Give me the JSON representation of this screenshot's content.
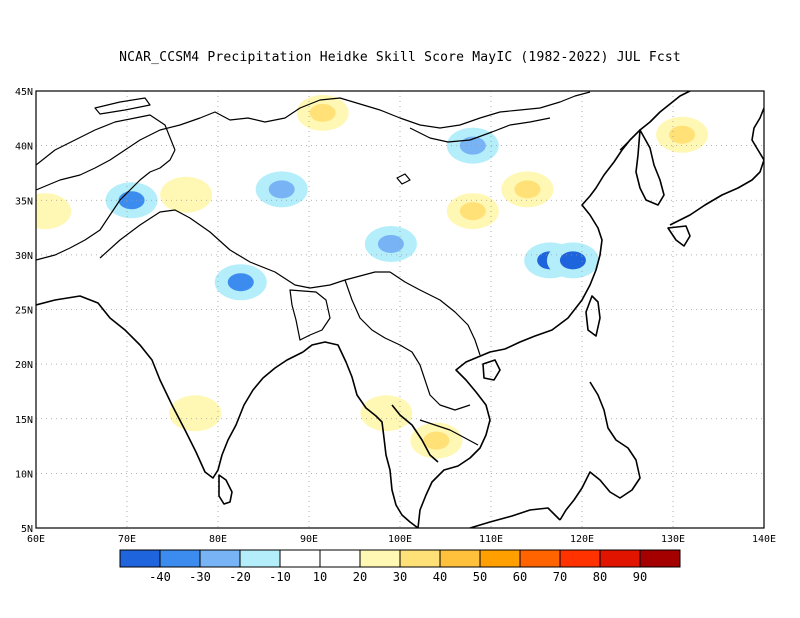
{
  "title": "NCAR_CCSM4  Precipitation Heidke Skill Score MayIC (1982-2022) JUL Fcst",
  "map": {
    "lon_range": [
      60,
      140
    ],
    "lat_range": [
      5,
      45
    ],
    "lon_ticks": [
      60,
      70,
      80,
      90,
      100,
      110,
      120,
      130,
      140
    ],
    "lat_ticks": [
      5,
      10,
      15,
      20,
      25,
      30,
      35,
      40,
      45
    ],
    "lon_labels": [
      "60E",
      "70E",
      "80E",
      "90E",
      "100E",
      "110E",
      "120E",
      "130E",
      "140E"
    ],
    "lat_labels": [
      "5N",
      "10N",
      "15N",
      "20N",
      "25N",
      "30N",
      "35N",
      "40N",
      "45N"
    ],
    "grid": "dotted"
  },
  "colorbar": {
    "colors": [
      "#1e64dc",
      "#3c8cf0",
      "#78b4f5",
      "#b4eefa",
      "#ffffff",
      "#fff8b4",
      "#ffe178",
      "#ffc03c",
      "#ffa000",
      "#ff6400",
      "#ff3200",
      "#e11400",
      "#a50000"
    ],
    "labels": [
      "-40",
      "-30",
      "-20",
      "-10",
      "10",
      "20",
      "30",
      "40",
      "50",
      "60",
      "70",
      "80",
      "90"
    ]
  },
  "chart_data": {
    "type": "heatmap",
    "title": "NCAR_CCSM4  Precipitation Heidke Skill Score MayIC (1982-2022) JUL Fcst",
    "x_range": [
      60,
      140
    ],
    "y_range": [
      5,
      45
    ],
    "color_levels": [
      -40,
      -30,
      -20,
      -10,
      10,
      20,
      30,
      40,
      50,
      60,
      70,
      80,
      90
    ],
    "regions": [
      {
        "lon": 70.5,
        "lat": 35.0,
        "value": -30
      },
      {
        "lon": 76.5,
        "lat": 35.5,
        "value": 20
      },
      {
        "lon": 82.5,
        "lat": 27.5,
        "value": -30
      },
      {
        "lon": 87.0,
        "lat": 36.0,
        "value": -20
      },
      {
        "lon": 91.5,
        "lat": 43.0,
        "value": 30
      },
      {
        "lon": 99.0,
        "lat": 31.0,
        "value": -20
      },
      {
        "lon": 108.0,
        "lat": 40.0,
        "value": -20
      },
      {
        "lon": 108.0,
        "lat": 34.0,
        "value": 30
      },
      {
        "lon": 116.5,
        "lat": 29.5,
        "value": -40
      },
      {
        "lon": 119.0,
        "lat": 29.5,
        "value": -40
      },
      {
        "lon": 114.0,
        "lat": 36.0,
        "value": 30
      },
      {
        "lon": 98.5,
        "lat": 15.5,
        "value": 20
      },
      {
        "lon": 104.0,
        "lat": 13.0,
        "value": 30
      },
      {
        "lon": 77.5,
        "lat": 15.5,
        "value": 20
      },
      {
        "lon": 131.0,
        "lat": 41.0,
        "value": 30
      },
      {
        "lon": 61.0,
        "lat": 34.0,
        "value": 20
      }
    ]
  }
}
